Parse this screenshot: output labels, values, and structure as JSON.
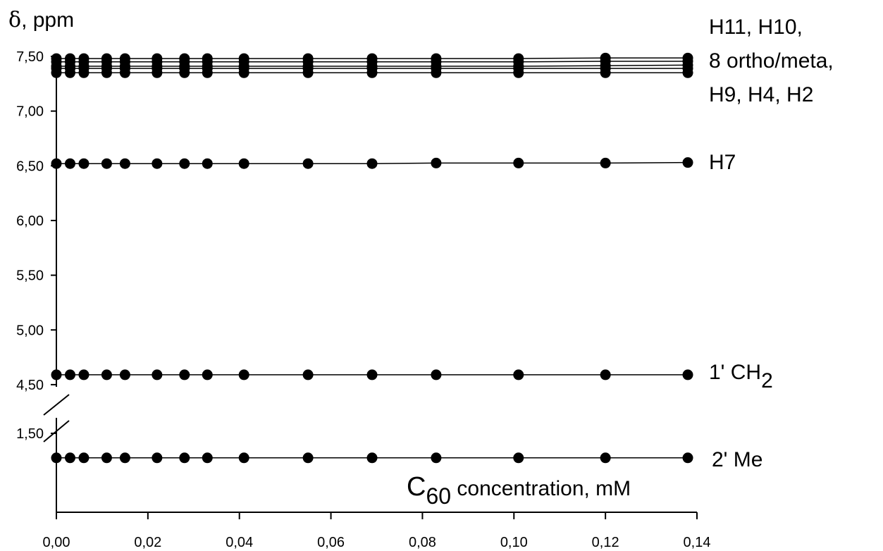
{
  "chart_data": {
    "type": "scatter",
    "x_title": {
      "prefix": "C",
      "sub": "60",
      "rest": " concentration, mM"
    },
    "y_title": {
      "symbol": "δ",
      "rest": ", ppm"
    },
    "xlim": [
      0,
      0.14
    ],
    "ylim_upper": [
      4.5,
      7.5
    ],
    "ylim_lower": [
      1.5
    ],
    "x_ticks": [
      "0,00",
      "0,02",
      "0,04",
      "0,06",
      "0,08",
      "0,10",
      "0,12",
      "0,14"
    ],
    "y_ticks_upper": [
      {
        "value": 7.5,
        "label": "7,50"
      },
      {
        "value": 7.0,
        "label": "7,00"
      },
      {
        "value": 6.5,
        "label": "6,50"
      },
      {
        "value": 6.0,
        "label": "6,00"
      },
      {
        "value": 5.5,
        "label": "5,50"
      },
      {
        "value": 5.0,
        "label": "5,00"
      },
      {
        "value": 4.5,
        "label": "4,50"
      }
    ],
    "y_ticks_lower": [
      {
        "value": 1.5,
        "label": "1,50"
      }
    ],
    "axis_break": true,
    "marker": "filled-circle",
    "x": [
      0.0,
      0.003,
      0.006,
      0.011,
      0.015,
      0.022,
      0.028,
      0.033,
      0.041,
      0.055,
      0.069,
      0.083,
      0.101,
      0.12,
      0.138
    ],
    "series": [
      {
        "values": [
          7.48,
          7.48,
          7.48,
          7.48,
          7.48,
          7.48,
          7.48,
          7.48,
          7.48,
          7.48,
          7.48,
          7.48,
          7.48,
          7.485,
          7.485
        ]
      },
      {
        "values": [
          7.45,
          7.45,
          7.45,
          7.45,
          7.45,
          7.45,
          7.45,
          7.45,
          7.45,
          7.45,
          7.45,
          7.45,
          7.45,
          7.455,
          7.455
        ]
      },
      {
        "values": [
          7.41,
          7.41,
          7.41,
          7.41,
          7.41,
          7.41,
          7.41,
          7.41,
          7.41,
          7.41,
          7.41,
          7.41,
          7.41,
          7.415,
          7.42
        ]
      },
      {
        "values": [
          7.39,
          7.39,
          7.39,
          7.39,
          7.39,
          7.39,
          7.39,
          7.39,
          7.39,
          7.39,
          7.39,
          7.39,
          7.39,
          7.39,
          7.39
        ]
      },
      {
        "values": [
          7.35,
          7.35,
          7.35,
          7.35,
          7.35,
          7.35,
          7.35,
          7.35,
          7.35,
          7.35,
          7.35,
          7.35,
          7.35,
          7.35,
          7.35
        ]
      },
      {
        "values": [
          6.52,
          6.52,
          6.52,
          6.52,
          6.52,
          6.52,
          6.52,
          6.52,
          6.52,
          6.52,
          6.52,
          6.525,
          6.525,
          6.525,
          6.53
        ]
      },
      {
        "values": [
          4.59,
          4.59,
          4.59,
          4.59,
          4.59,
          4.59,
          4.59,
          4.59,
          4.59,
          4.59,
          4.59,
          4.59,
          4.59,
          4.59,
          4.59
        ]
      },
      {
        "values": [
          1.38,
          1.38,
          1.38,
          1.38,
          1.38,
          1.38,
          1.38,
          1.38,
          1.38,
          1.38,
          1.38,
          1.38,
          1.38,
          1.38,
          1.38
        ]
      }
    ],
    "annotations": [
      {
        "text": "H11, H10,"
      },
      {
        "text": "8 ortho/meta,"
      },
      {
        "text": "H9, H4, H2"
      },
      {
        "text": "H7"
      },
      {
        "text": "1' CH",
        "sub": "2"
      },
      {
        "text": "2' Me"
      }
    ]
  }
}
